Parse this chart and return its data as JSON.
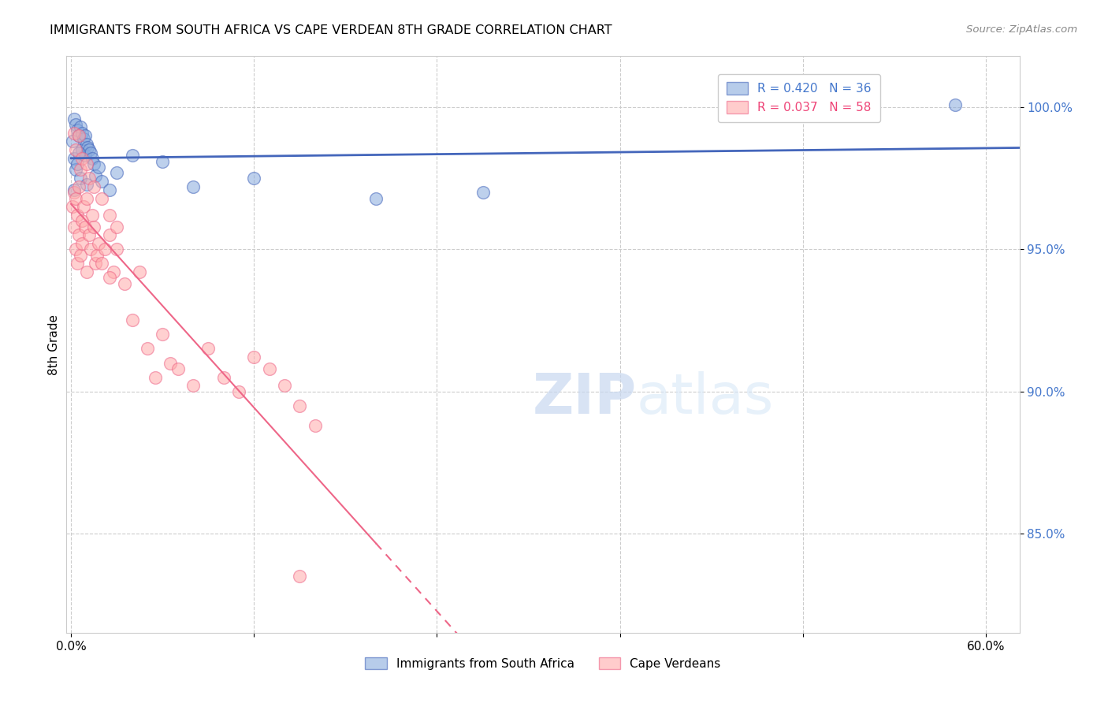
{
  "title": "IMMIGRANTS FROM SOUTH AFRICA VS CAPE VERDEAN 8TH GRADE CORRELATION CHART",
  "source": "Source: ZipAtlas.com",
  "ylabel": "8th Grade",
  "ymin": 81.5,
  "ymax": 101.8,
  "xmin": -0.003,
  "xmax": 0.622,
  "color_blue": "#88AADD",
  "color_pink": "#FFAAAA",
  "line_blue": "#4466BB",
  "line_pink": "#EE6688",
  "watermark_zip": "ZIP",
  "watermark_atlas": "atlas",
  "blue_x": [
    0.001,
    0.002,
    0.002,
    0.003,
    0.003,
    0.004,
    0.004,
    0.005,
    0.006,
    0.006,
    0.007,
    0.007,
    0.008,
    0.009,
    0.009,
    0.01,
    0.01,
    0.011,
    0.012,
    0.013,
    0.014,
    0.015,
    0.016,
    0.018,
    0.02,
    0.025,
    0.03,
    0.04,
    0.06,
    0.08,
    0.12,
    0.2,
    0.27,
    0.58,
    0.002,
    0.005
  ],
  "blue_y": [
    98.8,
    99.6,
    98.2,
    99.4,
    97.8,
    99.2,
    98.0,
    99.0,
    99.3,
    97.5,
    99.1,
    98.5,
    98.9,
    99.0,
    98.3,
    98.7,
    97.3,
    98.6,
    98.5,
    98.4,
    98.2,
    98.0,
    97.6,
    97.9,
    97.4,
    97.1,
    97.7,
    98.3,
    98.1,
    97.2,
    97.5,
    96.8,
    97.0,
    100.1,
    97.1,
    98.4
  ],
  "pink_x": [
    0.001,
    0.002,
    0.002,
    0.003,
    0.003,
    0.004,
    0.004,
    0.005,
    0.005,
    0.006,
    0.006,
    0.007,
    0.007,
    0.008,
    0.009,
    0.01,
    0.01,
    0.012,
    0.013,
    0.014,
    0.015,
    0.016,
    0.017,
    0.018,
    0.02,
    0.022,
    0.025,
    0.028,
    0.03,
    0.035,
    0.04,
    0.045,
    0.05,
    0.055,
    0.06,
    0.065,
    0.07,
    0.08,
    0.09,
    0.1,
    0.11,
    0.12,
    0.13,
    0.14,
    0.15,
    0.16,
    0.002,
    0.003,
    0.005,
    0.007,
    0.01,
    0.012,
    0.015,
    0.02,
    0.025,
    0.03,
    0.15,
    0.025
  ],
  "pink_y": [
    96.5,
    97.0,
    95.8,
    96.8,
    95.0,
    96.2,
    94.5,
    97.2,
    95.5,
    97.8,
    94.8,
    96.0,
    95.2,
    96.5,
    95.8,
    96.8,
    94.2,
    95.5,
    95.0,
    96.2,
    95.8,
    94.5,
    94.8,
    95.2,
    94.5,
    95.0,
    95.5,
    94.2,
    95.0,
    93.8,
    92.5,
    94.2,
    91.5,
    90.5,
    92.0,
    91.0,
    90.8,
    90.2,
    91.5,
    90.5,
    90.0,
    91.2,
    90.8,
    90.2,
    89.5,
    88.8,
    99.1,
    98.5,
    99.0,
    98.2,
    98.0,
    97.5,
    97.2,
    96.8,
    96.2,
    95.8,
    83.5,
    94.0
  ]
}
